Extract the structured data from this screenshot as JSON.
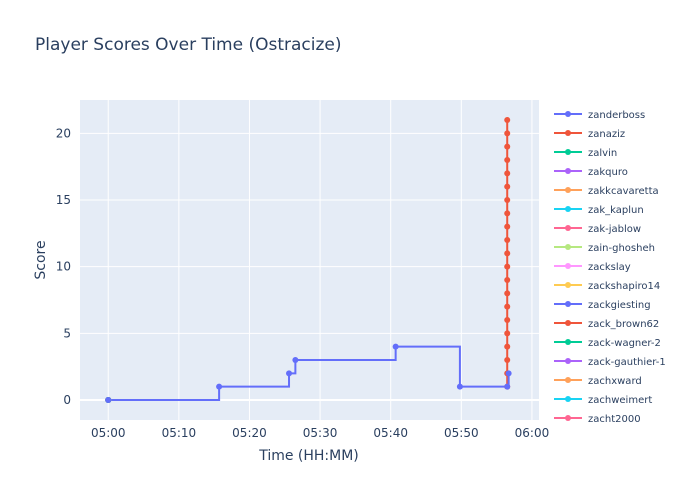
{
  "chart_data": {
    "type": "line",
    "title": "Player Scores Over Time (Ostracize)",
    "xlabel": "Time (HH:MM)",
    "ylabel": "Score",
    "x_ticks": [
      "05:00",
      "05:10",
      "05:20",
      "05:30",
      "05:40",
      "05:50",
      "06:00"
    ],
    "x_range_minutes": [
      296,
      361
    ],
    "ylim": [
      -1.5,
      22.5
    ],
    "y_ticks": [
      0,
      5,
      10,
      15,
      20
    ],
    "grid": true,
    "line_shape": "step",
    "legend_position": "right",
    "series": [
      {
        "name": "zanderboss",
        "color": "#636efa",
        "x": [
          "05:00",
          "05:15.7",
          "05:25.6",
          "05:26.5",
          "05:40.7",
          "05:49.8",
          "05:56.5",
          "05:56.7"
        ],
        "y": [
          0,
          1,
          2,
          3,
          4,
          1,
          1,
          2
        ]
      },
      {
        "name": "zanaziz",
        "color": "#ef553b",
        "x": [
          "05:56.5",
          "05:56.5",
          "05:56.5",
          "05:56.5",
          "05:56.5",
          "05:56.5",
          "05:56.5",
          "05:56.5",
          "05:56.5",
          "05:56.5",
          "05:56.5",
          "05:56.5",
          "05:56.5",
          "05:56.5",
          "05:56.5",
          "05:56.5",
          "05:56.5",
          "05:56.5",
          "05:56.5",
          "05:56.5",
          "05:56.5"
        ],
        "y": [
          1,
          2,
          3,
          4,
          5,
          6,
          7,
          8,
          9,
          10,
          11,
          12,
          13,
          14,
          15,
          16,
          17,
          18,
          19,
          20,
          21
        ]
      },
      {
        "name": "zalvin",
        "color": "#00cc96",
        "x": [
          "05:00"
        ],
        "y": [
          0
        ]
      },
      {
        "name": "zakquro",
        "color": "#ab63fa",
        "x": [
          "05:00"
        ],
        "y": [
          0
        ]
      },
      {
        "name": "zakkcavaretta",
        "color": "#ffa15a",
        "x": [
          "05:00"
        ],
        "y": [
          0
        ]
      },
      {
        "name": "zak_kaplun",
        "color": "#19d3f3",
        "x": [
          "05:00"
        ],
        "y": [
          0
        ]
      },
      {
        "name": "zak-jablow",
        "color": "#ff6692",
        "x": [
          "05:00"
        ],
        "y": [
          0
        ]
      },
      {
        "name": "zain-ghosheh",
        "color": "#b6e880",
        "x": [
          "05:00"
        ],
        "y": [
          0
        ]
      },
      {
        "name": "zackslay",
        "color": "#ff97ff",
        "x": [
          "05:00"
        ],
        "y": [
          0
        ]
      },
      {
        "name": "zackshapiro14",
        "color": "#fecb52",
        "x": [
          "05:00"
        ],
        "y": [
          0
        ]
      },
      {
        "name": "zackgiesting",
        "color": "#636efa",
        "x": [
          "05:00"
        ],
        "y": [
          0
        ]
      },
      {
        "name": "zack_brown62",
        "color": "#ef553b",
        "x": [
          "05:00"
        ],
        "y": [
          0
        ]
      },
      {
        "name": "zack-wagner-2",
        "color": "#00cc96",
        "x": [
          "05:00"
        ],
        "y": [
          0
        ]
      },
      {
        "name": "zack-gauthier-1",
        "color": "#ab63fa",
        "x": [
          "05:00"
        ],
        "y": [
          0
        ]
      },
      {
        "name": "zachxward",
        "color": "#ffa15a",
        "x": [
          "05:00"
        ],
        "y": [
          0
        ]
      },
      {
        "name": "zachweimert",
        "color": "#19d3f3",
        "x": [
          "05:00"
        ],
        "y": [
          0
        ]
      },
      {
        "name": "zacht2000",
        "color": "#ff6692",
        "x": [
          "05:00"
        ],
        "y": [
          0
        ]
      }
    ]
  }
}
